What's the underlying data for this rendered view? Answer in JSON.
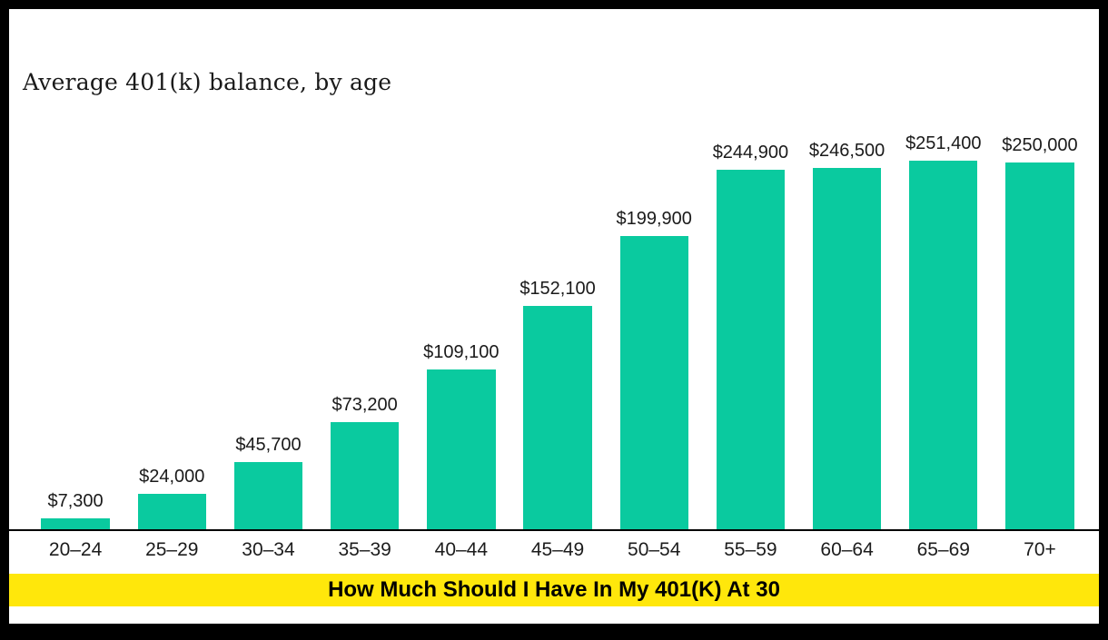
{
  "title": "Average 401(k) balance, by age",
  "banner": {
    "text": "How Much Should I Have In My 401(K) At 30",
    "background": "#FFE70B",
    "text_color": "#000000"
  },
  "frame": {
    "border_color": "#000000",
    "background": "#ffffff"
  },
  "chart_data": {
    "type": "bar",
    "title": "Average 401(k) balance, by age",
    "categories": [
      "20–24",
      "25–29",
      "30–34",
      "35–39",
      "40–44",
      "45–49",
      "50–54",
      "55–59",
      "60–64",
      "65–69",
      "70+"
    ],
    "values": [
      7300,
      24000,
      45700,
      73200,
      109100,
      152100,
      199900,
      244900,
      246500,
      251400,
      250000
    ],
    "data_labels": [
      "$7,300",
      "$24,000",
      "$45,700",
      "$73,200",
      "$109,100",
      "$152,100",
      "$199,900",
      "$244,900",
      "$246,500",
      "$251,400",
      "$250,000"
    ],
    "bar_color": "#0ACA9F",
    "axis_color": "#000000",
    "xlabel": "",
    "ylabel": "",
    "ylim": [
      0,
      260000
    ],
    "grid": false,
    "legend": "none",
    "data_label_position": "above bars"
  }
}
